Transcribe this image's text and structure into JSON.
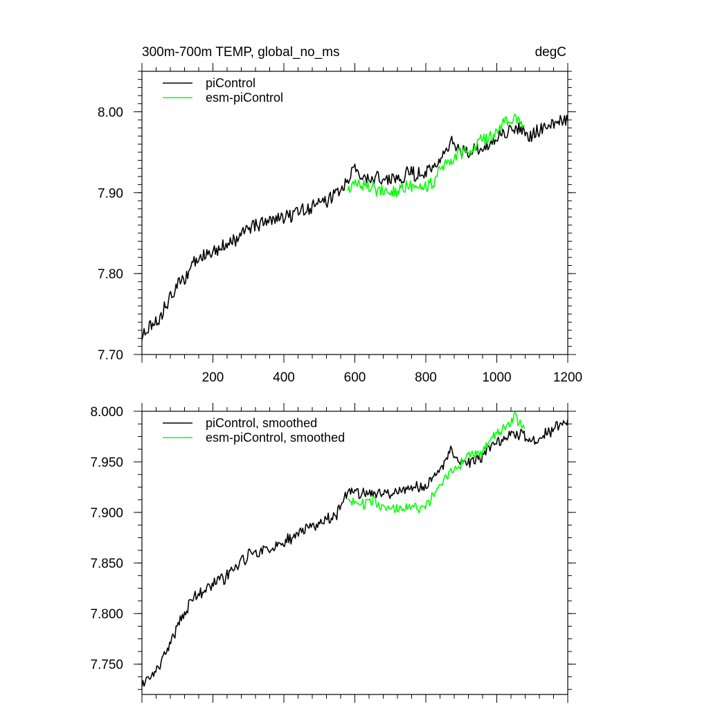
{
  "chart_data": [
    {
      "type": "line",
      "title": "300m-700m TEMP, global_no_ms",
      "units": "degC",
      "xlim": [
        0,
        1200
      ],
      "ylim": [
        7.7,
        8.05
      ],
      "xticks": [
        200,
        400,
        600,
        800,
        1000,
        1200
      ],
      "xtick_labels": [
        "200",
        "400",
        "600",
        "800",
        "1000",
        "1200"
      ],
      "yticks": [
        7.7,
        7.8,
        7.9,
        8.0
      ],
      "ytick_labels": [
        "7.70",
        "7.80",
        "7.90",
        "8.00"
      ],
      "legend": "top-left",
      "grid": false,
      "series": [
        {
          "name": "piControl",
          "color": "#000000",
          "x": [
            0,
            50,
            100,
            150,
            200,
            250,
            300,
            350,
            400,
            450,
            500,
            550,
            580,
            600,
            650,
            700,
            750,
            800,
            850,
            870,
            900,
            950,
            1000,
            1050,
            1100,
            1150,
            1200
          ],
          "y": [
            7.725,
            7.745,
            7.785,
            7.815,
            7.828,
            7.838,
            7.855,
            7.864,
            7.87,
            7.878,
            7.888,
            7.898,
            7.918,
            7.925,
            7.915,
            7.918,
            7.922,
            7.925,
            7.945,
            7.965,
            7.952,
            7.95,
            7.965,
            7.982,
            7.97,
            7.985,
            7.993
          ]
        },
        {
          "name": "esm-piControl",
          "color": "#00ff00",
          "x": [
            580,
            600,
            650,
            700,
            750,
            800,
            850,
            900,
            950,
            1000,
            1050,
            1080
          ],
          "y": [
            7.91,
            7.912,
            7.905,
            7.9,
            7.905,
            7.905,
            7.93,
            7.95,
            7.96,
            7.98,
            7.995,
            7.985
          ]
        }
      ]
    },
    {
      "type": "line",
      "xlim": [
        0,
        1200
      ],
      "ylim": [
        7.72,
        8.0
      ],
      "yticks": [
        7.75,
        7.8,
        7.85,
        7.9,
        7.95,
        8.0
      ],
      "ytick_labels": [
        "7.750",
        "7.800",
        "7.850",
        "7.900",
        "7.950",
        "8.000"
      ],
      "legend": "top-left",
      "grid": false,
      "series": [
        {
          "name": "piControl, smoothed",
          "color": "#000000",
          "x": [
            0,
            50,
            100,
            150,
            200,
            250,
            300,
            350,
            400,
            450,
            500,
            550,
            580,
            600,
            650,
            700,
            750,
            800,
            850,
            870,
            900,
            950,
            1000,
            1050,
            1100,
            1150,
            1200
          ],
          "y": [
            7.728,
            7.748,
            7.788,
            7.818,
            7.828,
            7.84,
            7.858,
            7.864,
            7.87,
            7.88,
            7.89,
            7.898,
            7.922,
            7.92,
            7.918,
            7.918,
            7.923,
            7.926,
            7.948,
            7.962,
            7.948,
            7.953,
            7.968,
            7.98,
            7.968,
            7.98,
            7.993
          ]
        },
        {
          "name": "esm-piControl, smoothed",
          "color": "#00ff00",
          "x": [
            580,
            600,
            650,
            700,
            750,
            800,
            850,
            900,
            950,
            1000,
            1050,
            1080
          ],
          "y": [
            7.91,
            7.91,
            7.91,
            7.902,
            7.906,
            7.905,
            7.932,
            7.95,
            7.96,
            7.978,
            7.993,
            7.985
          ]
        }
      ]
    }
  ]
}
